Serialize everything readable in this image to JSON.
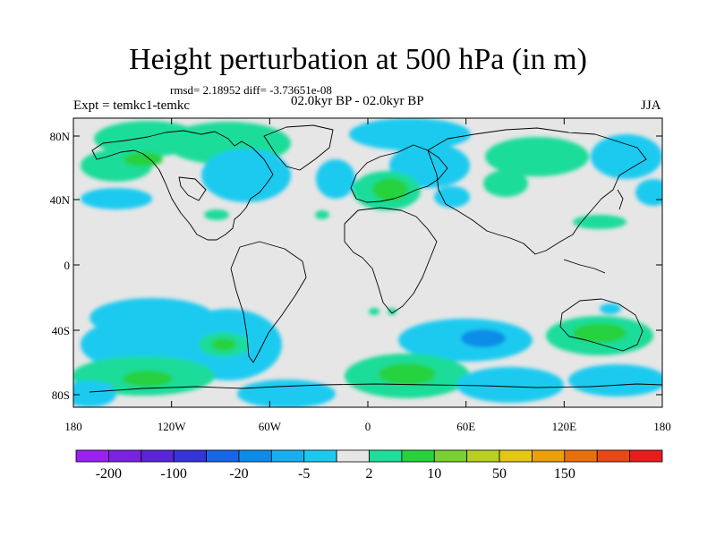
{
  "title": "Height perturbation at 500 hPa (in m)",
  "stats": "rmsd= 2.18952 diff= -3.73651e-08",
  "subtitle": "02.0kyr BP - 02.0kyr BP",
  "expt_label": "Expt = temkc1-temkc",
  "season": "JJA",
  "lat_labels": [
    "80N",
    "40N",
    "0",
    "40S",
    "80S"
  ],
  "lon_labels": [
    "180",
    "120W",
    "60W",
    "0",
    "60E",
    "120E",
    "180"
  ],
  "colorbar": {
    "colors": [
      "#9a20f0",
      "#7a22e2",
      "#5b24d8",
      "#3434d8",
      "#1866e8",
      "#0c8ce8",
      "#18aef0",
      "#1ccaf0",
      "#e6e6e6",
      "#1edc9a",
      "#28d23c",
      "#7ad030",
      "#b8d020",
      "#e4c814",
      "#eca00c",
      "#e8700c",
      "#e84814",
      "#e81c1c"
    ],
    "tick_labels": [
      "-200",
      "-100",
      "-20",
      "-5",
      "2",
      "10",
      "50",
      "150"
    ]
  }
}
